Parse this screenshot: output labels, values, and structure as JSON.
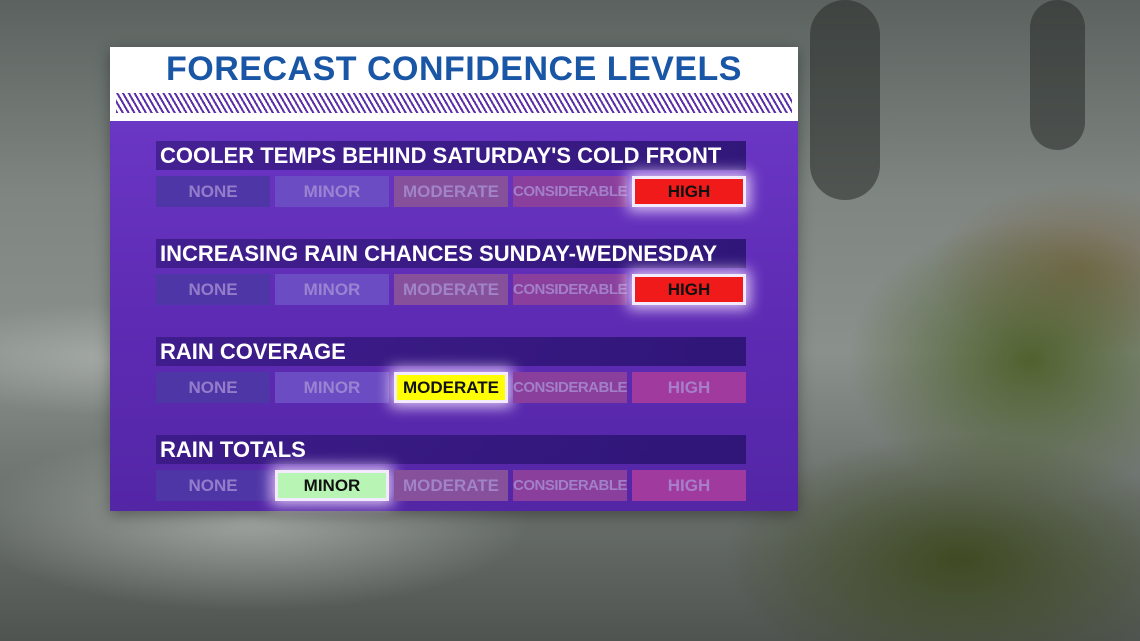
{
  "title": "FORECAST CONFIDENCE LEVELS",
  "level_names": [
    "NONE",
    "MINOR",
    "MODERATE",
    "CONSIDERABLE",
    "HIGH"
  ],
  "active_colors": {
    "none": "#4f36a6",
    "minor": "#b8f5b4",
    "moderate": "#ffff00",
    "considerable": "#ff8a3a",
    "high": "#f01a1a"
  },
  "rows": [
    {
      "label": "COOLER TEMPS BEHIND SATURDAY'S COLD FRONT",
      "active_level": "HIGH"
    },
    {
      "label": "INCREASING RAIN CHANCES SUNDAY-WEDNESDAY",
      "active_level": "HIGH"
    },
    {
      "label": "RAIN COVERAGE",
      "active_level": "MODERATE"
    },
    {
      "label": "RAIN TOTALS",
      "active_level": "MINOR"
    }
  ]
}
